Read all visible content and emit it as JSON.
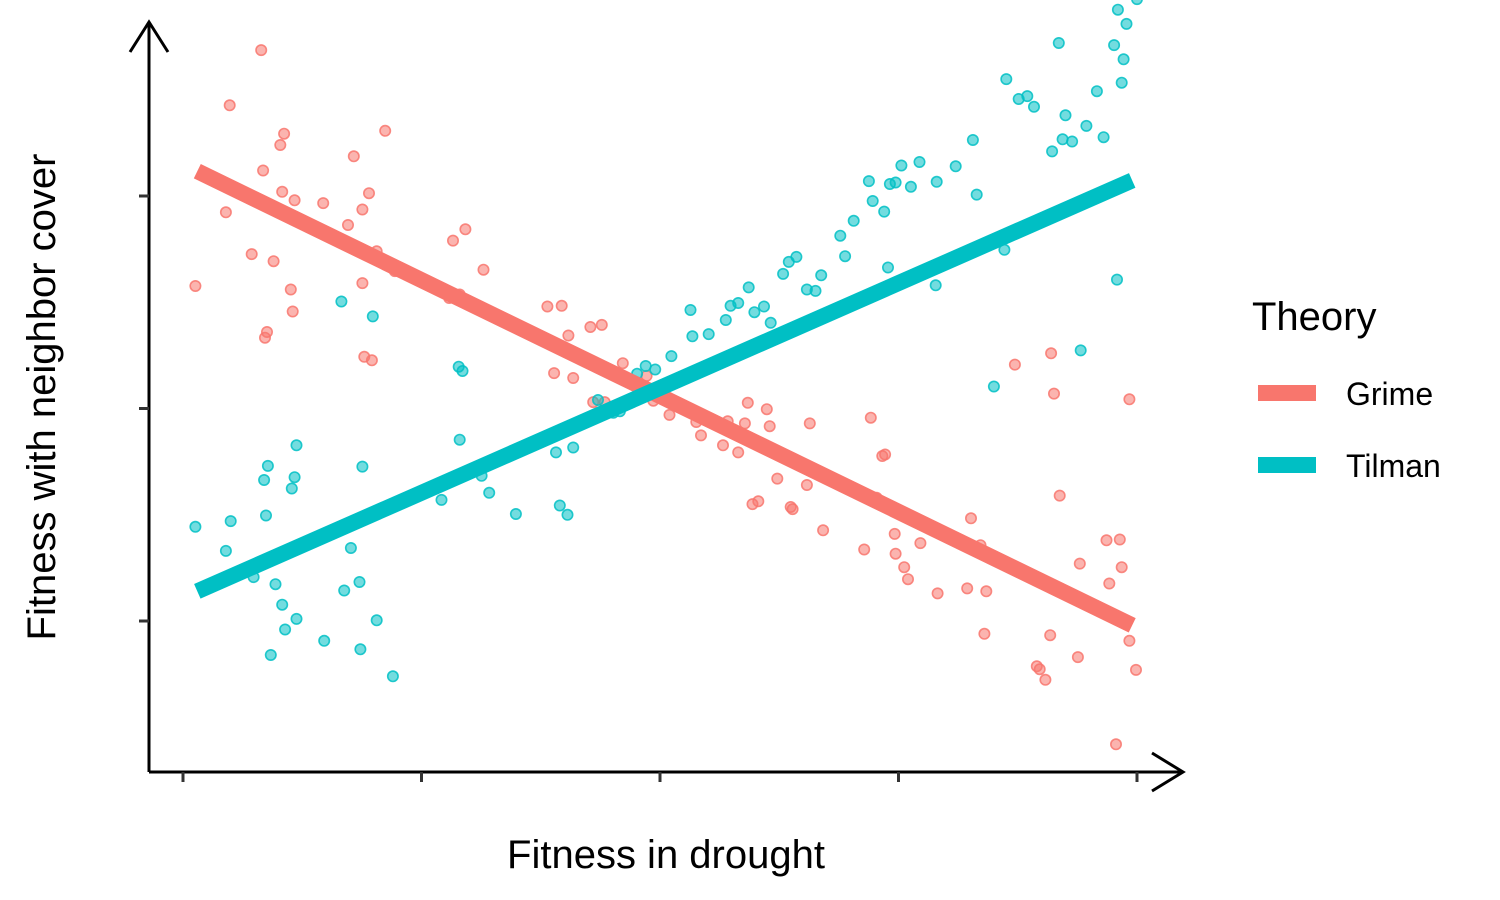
{
  "chart_data": {
    "type": "scatter",
    "xlabel": "Fitness in drought",
    "ylabel": "Fitness with neighbor cover",
    "xlim": [
      0,
      100
    ],
    "ylim": [
      0,
      100
    ],
    "xticks": [
      0,
      25,
      50,
      75,
      100
    ],
    "yticks": [
      20,
      50,
      80
    ],
    "grid": false,
    "legend": {
      "title": "Theory",
      "position": "right"
    },
    "series": [
      {
        "name": "Grime",
        "color": "#F8766D",
        "fit": [
          [
            1.5,
            83.5
          ],
          [
            99.5,
            19.4
          ]
        ],
        "points": [
          [
            1.3,
            67.3
          ],
          [
            4.5,
            77.7
          ],
          [
            4.9,
            92.8
          ],
          [
            7.2,
            71.8
          ],
          [
            8.2,
            100.6
          ],
          [
            8.4,
            83.6
          ],
          [
            8.6,
            60.0
          ],
          [
            8.8,
            60.8
          ],
          [
            9.5,
            70.8
          ],
          [
            10.2,
            87.2
          ],
          [
            10.4,
            80.6
          ],
          [
            10.6,
            88.8
          ],
          [
            11.3,
            66.8
          ],
          [
            11.5,
            63.7
          ],
          [
            11.7,
            79.4
          ],
          [
            14.7,
            79.0
          ],
          [
            17.3,
            75.9
          ],
          [
            17.9,
            85.6
          ],
          [
            18.8,
            67.7
          ],
          [
            18.8,
            78.1
          ],
          [
            19.0,
            57.3
          ],
          [
            19.5,
            80.4
          ],
          [
            19.8,
            56.8
          ],
          [
            20.3,
            72.2
          ],
          [
            21.2,
            89.2
          ],
          [
            22.2,
            69.4
          ],
          [
            27.9,
            65.6
          ],
          [
            28.3,
            73.7
          ],
          [
            29.0,
            66.1
          ],
          [
            29.6,
            75.3
          ],
          [
            31.5,
            69.6
          ],
          [
            38.2,
            64.4
          ],
          [
            38.9,
            55.0
          ],
          [
            39.7,
            64.5
          ],
          [
            39.3,
            58.8
          ],
          [
            40.4,
            60.3
          ],
          [
            40.9,
            54.3
          ],
          [
            42.7,
            61.5
          ],
          [
            43.0,
            50.9
          ],
          [
            43.9,
            61.8
          ],
          [
            44.2,
            50.9
          ],
          [
            46.1,
            56.4
          ],
          [
            47.6,
            51.7
          ],
          [
            48.6,
            54.6
          ],
          [
            49.3,
            51.1
          ],
          [
            50.3,
            52.3
          ],
          [
            51.0,
            49.1
          ],
          [
            52.2,
            50.2
          ],
          [
            53.8,
            48.1
          ],
          [
            54.3,
            46.2
          ],
          [
            56.6,
            44.8
          ],
          [
            57.1,
            48.2
          ],
          [
            58.2,
            43.8
          ],
          [
            58.9,
            47.9
          ],
          [
            59.2,
            50.8
          ],
          [
            59.7,
            36.5
          ],
          [
            60.3,
            36.9
          ],
          [
            61.5,
            47.5
          ],
          [
            61.2,
            49.9
          ],
          [
            62.3,
            40.1
          ],
          [
            63.7,
            36.1
          ],
          [
            63.9,
            35.8
          ],
          [
            65.4,
            39.2
          ],
          [
            65.7,
            47.9
          ],
          [
            67.1,
            32.8
          ],
          [
            71.4,
            30.1
          ],
          [
            72.1,
            48.7
          ],
          [
            72.7,
            37.4
          ],
          [
            73.3,
            43.3
          ],
          [
            73.6,
            43.5
          ],
          [
            74.6,
            32.3
          ],
          [
            74.7,
            29.5
          ],
          [
            75.6,
            27.6
          ],
          [
            76.0,
            25.9
          ],
          [
            77.3,
            31.0
          ],
          [
            79.1,
            23.9
          ],
          [
            82.2,
            24.6
          ],
          [
            82.6,
            34.5
          ],
          [
            84.2,
            24.2
          ],
          [
            83.6,
            30.7
          ],
          [
            84.0,
            18.2
          ],
          [
            87.2,
            56.2
          ],
          [
            89.5,
            13.6
          ],
          [
            90.4,
            11.7
          ],
          [
            91.3,
            52.1
          ],
          [
            90.9,
            18.0
          ],
          [
            91.9,
            37.7
          ],
          [
            93.8,
            14.9
          ],
          [
            94.0,
            28.1
          ],
          [
            96.8,
            31.4
          ],
          [
            97.1,
            25.3
          ],
          [
            97.8,
            2.6
          ],
          [
            98.2,
            31.5
          ],
          [
            97.9,
            20.6
          ],
          [
            98.4,
            27.6
          ],
          [
            99.2,
            17.2
          ],
          [
            99.9,
            13.1
          ],
          [
            99.2,
            51.3
          ],
          [
            91.0,
            57.8
          ],
          [
            89.8,
            13.2
          ]
        ]
      },
      {
        "name": "Tilman",
        "color": "#00BFC4",
        "fit": [
          [
            1.5,
            24.2
          ],
          [
            99.5,
            82.2
          ]
        ],
        "points": [
          [
            1.3,
            33.3
          ],
          [
            4.5,
            29.9
          ],
          [
            5.0,
            34.1
          ],
          [
            7.4,
            26.2
          ],
          [
            8.5,
            39.9
          ],
          [
            8.7,
            34.9
          ],
          [
            8.9,
            41.9
          ],
          [
            9.2,
            15.2
          ],
          [
            9.7,
            25.2
          ],
          [
            10.4,
            22.3
          ],
          [
            10.7,
            18.8
          ],
          [
            11.4,
            38.7
          ],
          [
            11.7,
            40.3
          ],
          [
            11.9,
            44.8
          ],
          [
            11.9,
            20.3
          ],
          [
            14.8,
            17.2
          ],
          [
            16.6,
            65.1
          ],
          [
            16.9,
            24.3
          ],
          [
            17.6,
            30.3
          ],
          [
            18.5,
            25.5
          ],
          [
            18.8,
            41.8
          ],
          [
            18.6,
            16.0
          ],
          [
            19.9,
            63.0
          ],
          [
            20.3,
            20.1
          ],
          [
            22.0,
            12.2
          ],
          [
            27.1,
            37.1
          ],
          [
            29.0,
            45.6
          ],
          [
            29.3,
            55.3
          ],
          [
            28.9,
            55.9
          ],
          [
            31.3,
            40.5
          ],
          [
            32.1,
            38.1
          ],
          [
            34.9,
            35.1
          ],
          [
            39.1,
            43.8
          ],
          [
            39.5,
            36.3
          ],
          [
            40.3,
            35.0
          ],
          [
            40.9,
            44.5
          ],
          [
            42.9,
            48.5
          ],
          [
            43.5,
            51.2
          ],
          [
            45.1,
            49.4
          ],
          [
            45.8,
            49.6
          ],
          [
            46.0,
            54.6
          ],
          [
            47.6,
            54.9
          ],
          [
            48.5,
            56.0
          ],
          [
            49.5,
            55.5
          ],
          [
            51.2,
            57.4
          ],
          [
            53.4,
            60.2
          ],
          [
            53.2,
            63.9
          ],
          [
            55.1,
            60.5
          ],
          [
            56.9,
            62.5
          ],
          [
            57.4,
            64.5
          ],
          [
            58.2,
            64.9
          ],
          [
            59.3,
            67.1
          ],
          [
            59.9,
            63.6
          ],
          [
            60.9,
            64.4
          ],
          [
            61.6,
            62.1
          ],
          [
            62.9,
            69.0
          ],
          [
            63.5,
            70.7
          ],
          [
            64.3,
            71.4
          ],
          [
            65.4,
            66.8
          ],
          [
            66.3,
            66.6
          ],
          [
            66.9,
            68.8
          ],
          [
            68.9,
            74.4
          ],
          [
            69.4,
            71.5
          ],
          [
            70.3,
            76.5
          ],
          [
            71.9,
            82.1
          ],
          [
            72.3,
            79.3
          ],
          [
            73.5,
            77.8
          ],
          [
            74.1,
            81.7
          ],
          [
            74.7,
            81.9
          ],
          [
            75.3,
            84.3
          ],
          [
            76.3,
            81.3
          ],
          [
            77.2,
            84.8
          ],
          [
            79.0,
            82.0
          ],
          [
            81.0,
            84.2
          ],
          [
            82.8,
            87.9
          ],
          [
            83.2,
            80.2
          ],
          [
            86.3,
            96.5
          ],
          [
            87.6,
            93.7
          ],
          [
            88.5,
            94.1
          ],
          [
            89.2,
            92.6
          ],
          [
            91.1,
            86.3
          ],
          [
            91.8,
            101.6
          ],
          [
            92.2,
            88.0
          ],
          [
            92.5,
            91.4
          ],
          [
            93.2,
            87.7
          ],
          [
            94.7,
            89.9
          ],
          [
            95.8,
            94.8
          ],
          [
            97.6,
            101.3
          ],
          [
            98.0,
            106.3
          ],
          [
            98.4,
            96.0
          ],
          [
            98.6,
            99.3
          ],
          [
            98.9,
            104.3
          ],
          [
            100.0,
            107.8
          ],
          [
            94.1,
            58.2
          ],
          [
            96.5,
            88.3
          ],
          [
            97.9,
            68.2
          ],
          [
            85.0,
            53.1
          ],
          [
            78.9,
            67.4
          ],
          [
            86.1,
            72.4
          ],
          [
            73.9,
            69.9
          ]
        ]
      }
    ]
  }
}
